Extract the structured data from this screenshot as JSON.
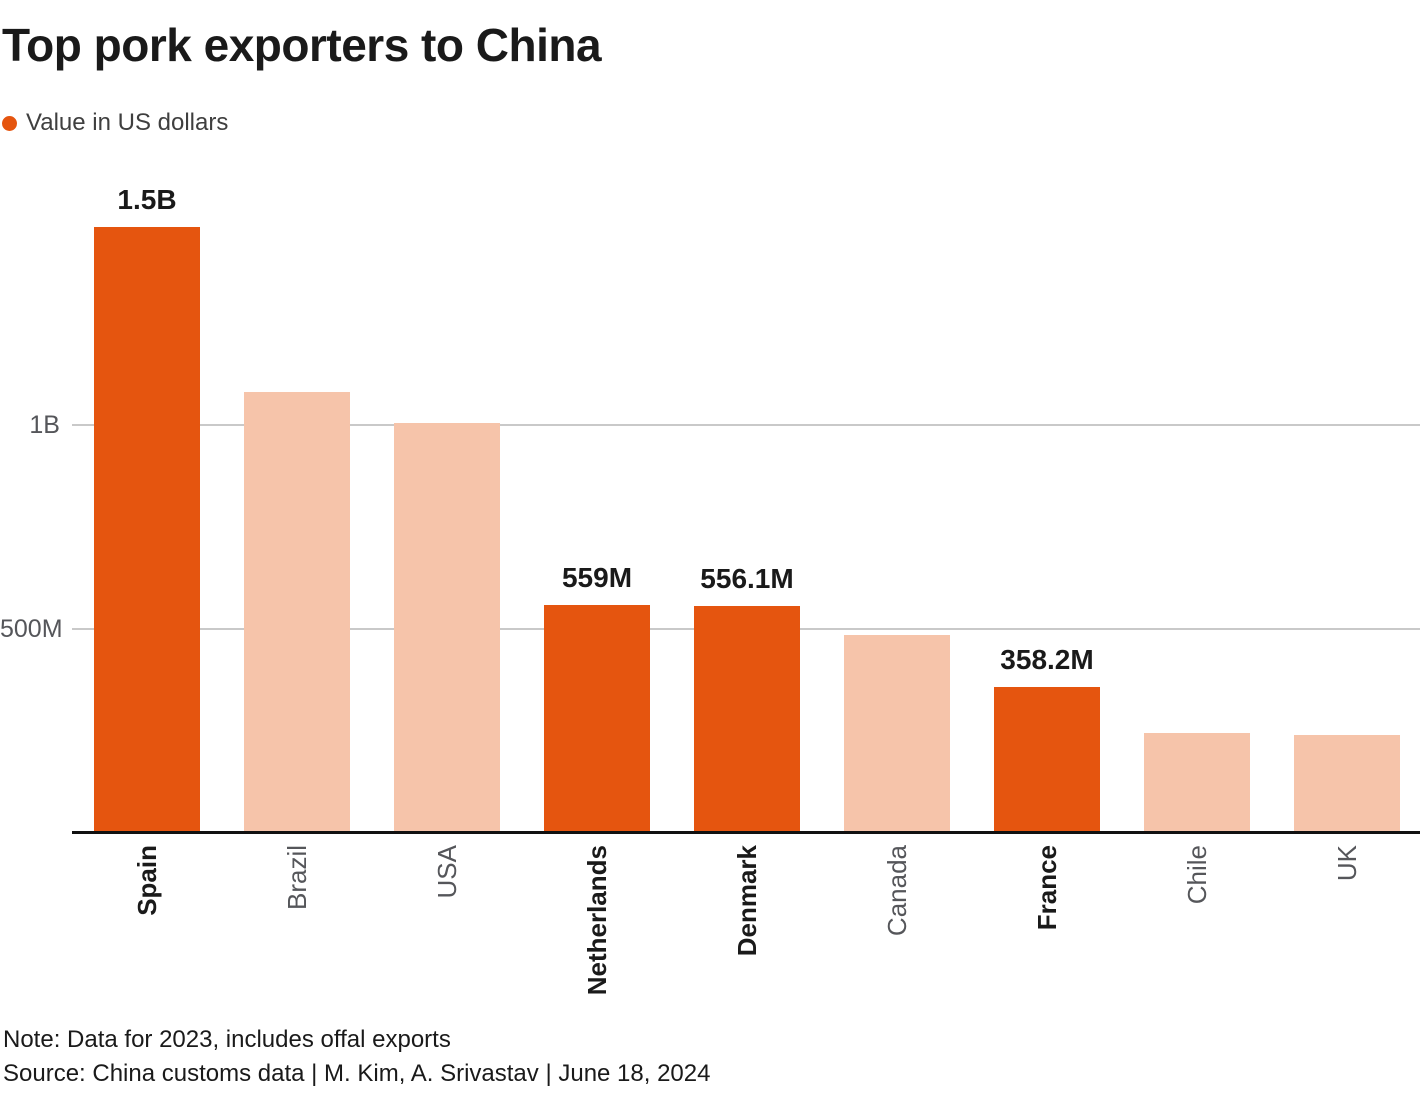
{
  "title": "Top pork exporters to China",
  "legend": {
    "label": "Value in US dollars",
    "dot_color": "#E5550F"
  },
  "chart_data": {
    "type": "bar",
    "title": "Top pork exporters to China",
    "subtitle": "Value in US dollars",
    "categories": [
      "Spain",
      "Brazil",
      "USA",
      "Netherlands",
      "Denmark",
      "Canada",
      "France",
      "Chile",
      "UK"
    ],
    "values_millions": [
      1485,
      1080,
      1005,
      559,
      556.1,
      485,
      358.2,
      245,
      240
    ],
    "value_labels": [
      "1.5B",
      "",
      "",
      "559M",
      "556.1M",
      "",
      "358.2M",
      "",
      ""
    ],
    "highlighted": [
      true,
      false,
      false,
      true,
      true,
      false,
      true,
      false,
      false
    ],
    "y_ticks": [
      {
        "label": "1B",
        "value_millions": 1000
      },
      {
        "label": "500M",
        "value_millions": 500
      }
    ],
    "ylim_millions": [
      0,
      1550
    ],
    "grid": "horizontal",
    "legend_position": "top-left",
    "colors": {
      "highlight": "#E5550F",
      "muted": "#F6C4AA",
      "gridline": "#C9C9C9",
      "axis": "#111111",
      "tick_text": "#55565A",
      "label_text": "#1A1A1A"
    }
  },
  "footer": {
    "note": "Note: Data for 2023, includes offal exports",
    "source": "Source: China customs data | M. Kim, A. Srivastav | June 18, 2024"
  }
}
